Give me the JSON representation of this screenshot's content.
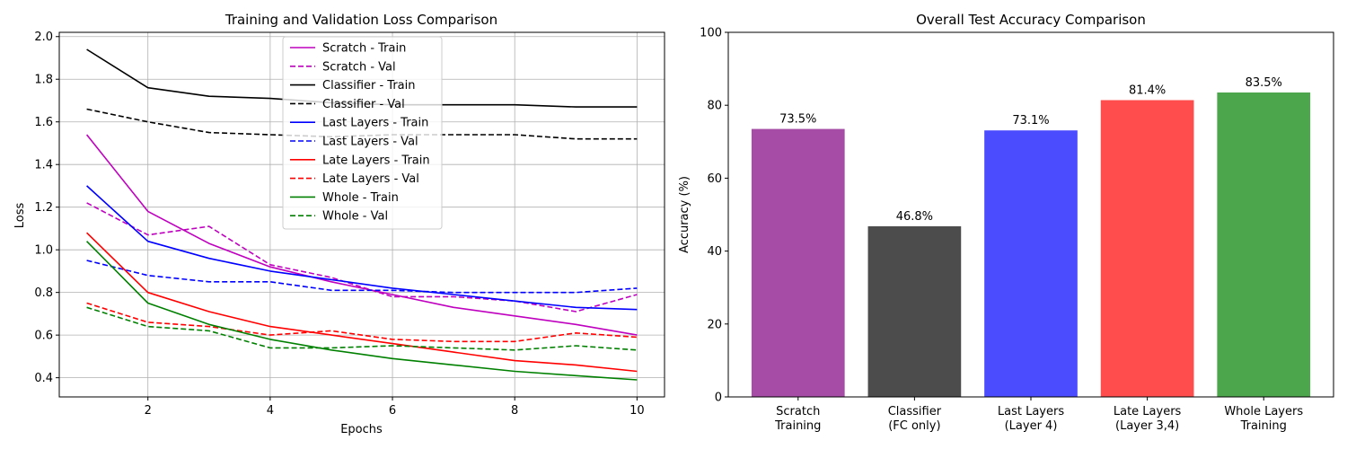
{
  "chart_data": [
    {
      "type": "line",
      "title": "Training and Validation Loss Comparison",
      "xlabel": "Epochs",
      "ylabel": "Loss",
      "xlim": [
        0.55,
        10.45
      ],
      "ylim": [
        0.31,
        2.02
      ],
      "xticks": [
        2,
        4,
        6,
        8,
        10
      ],
      "yticks": [
        0.4,
        0.6,
        0.8,
        1.0,
        1.2,
        1.4,
        1.6,
        1.8,
        2.0
      ],
      "xtick_labels": [
        "2",
        "4",
        "6",
        "8",
        "10"
      ],
      "ytick_labels": [
        "0.4",
        "0.6",
        "0.8",
        "1.0",
        "1.2",
        "1.4",
        "1.6",
        "1.8",
        "2.0"
      ],
      "grid": true,
      "legend_position": "top-center",
      "x": [
        1,
        2,
        3,
        4,
        5,
        6,
        7,
        8,
        9,
        10
      ],
      "series": [
        {
          "name": "Scratch - Train",
          "color": "#bf00bf",
          "dash": false,
          "values": [
            1.54,
            1.18,
            1.03,
            0.92,
            0.85,
            0.79,
            0.73,
            0.69,
            0.65,
            0.6
          ]
        },
        {
          "name": "Scratch - Val",
          "color": "#bf00bf",
          "dash": true,
          "values": [
            1.22,
            1.07,
            1.11,
            0.93,
            0.87,
            0.78,
            0.78,
            0.76,
            0.71,
            0.79
          ]
        },
        {
          "name": "Classifier - Train",
          "color": "#000000",
          "dash": false,
          "values": [
            1.94,
            1.76,
            1.72,
            1.71,
            1.69,
            1.68,
            1.68,
            1.68,
            1.67,
            1.67
          ]
        },
        {
          "name": "Classifier - Val",
          "color": "#000000",
          "dash": true,
          "values": [
            1.66,
            1.6,
            1.55,
            1.54,
            1.53,
            1.54,
            1.54,
            1.54,
            1.52,
            1.52
          ]
        },
        {
          "name": "Last Layers - Train",
          "color": "#0000ff",
          "dash": false,
          "values": [
            1.3,
            1.04,
            0.96,
            0.9,
            0.86,
            0.82,
            0.79,
            0.76,
            0.73,
            0.72
          ]
        },
        {
          "name": "Last Layers - Val",
          "color": "#0000ff",
          "dash": true,
          "values": [
            0.95,
            0.88,
            0.85,
            0.85,
            0.81,
            0.81,
            0.8,
            0.8,
            0.8,
            0.82
          ]
        },
        {
          "name": "Late Layers - Train",
          "color": "#ff0000",
          "dash": false,
          "values": [
            1.08,
            0.8,
            0.71,
            0.64,
            0.6,
            0.56,
            0.52,
            0.48,
            0.46,
            0.43
          ]
        },
        {
          "name": "Late Layers - Val",
          "color": "#ff0000",
          "dash": true,
          "values": [
            0.75,
            0.66,
            0.64,
            0.6,
            0.62,
            0.58,
            0.57,
            0.57,
            0.61,
            0.59
          ]
        },
        {
          "name": "Whole - Train",
          "color": "#008000",
          "dash": false,
          "values": [
            1.04,
            0.75,
            0.65,
            0.58,
            0.53,
            0.49,
            0.46,
            0.43,
            0.41,
            0.39
          ]
        },
        {
          "name": "Whole - Val",
          "color": "#008000",
          "dash": true,
          "values": [
            0.73,
            0.64,
            0.62,
            0.54,
            0.54,
            0.55,
            0.54,
            0.53,
            0.55,
            0.53
          ]
        }
      ]
    },
    {
      "type": "bar",
      "title": "Overall Test Accuracy Comparison",
      "xlabel": "",
      "ylabel": "Accuracy (%)",
      "ylim": [
        0,
        100
      ],
      "yticks": [
        0,
        20,
        40,
        60,
        80,
        100
      ],
      "ytick_labels": [
        "0",
        "20",
        "40",
        "60",
        "80",
        "100"
      ],
      "grid": false,
      "categories": [
        [
          "Scratch",
          "Training"
        ],
        [
          "Classifier",
          "(FC only)"
        ],
        [
          "Last Layers",
          "(Layer 4)"
        ],
        [
          "Late Layers",
          "(Layer 3,4)"
        ],
        [
          "Whole Layers",
          "Training"
        ]
      ],
      "values": [
        73.5,
        46.8,
        73.1,
        81.4,
        83.5
      ],
      "value_labels": [
        "73.5%",
        "46.8%",
        "73.1%",
        "81.4%",
        "83.5%"
      ],
      "colors": [
        "#a64ca6",
        "#4c4c4c",
        "#4c4cff",
        "#ff4c4c",
        "#4ca64c"
      ]
    }
  ]
}
